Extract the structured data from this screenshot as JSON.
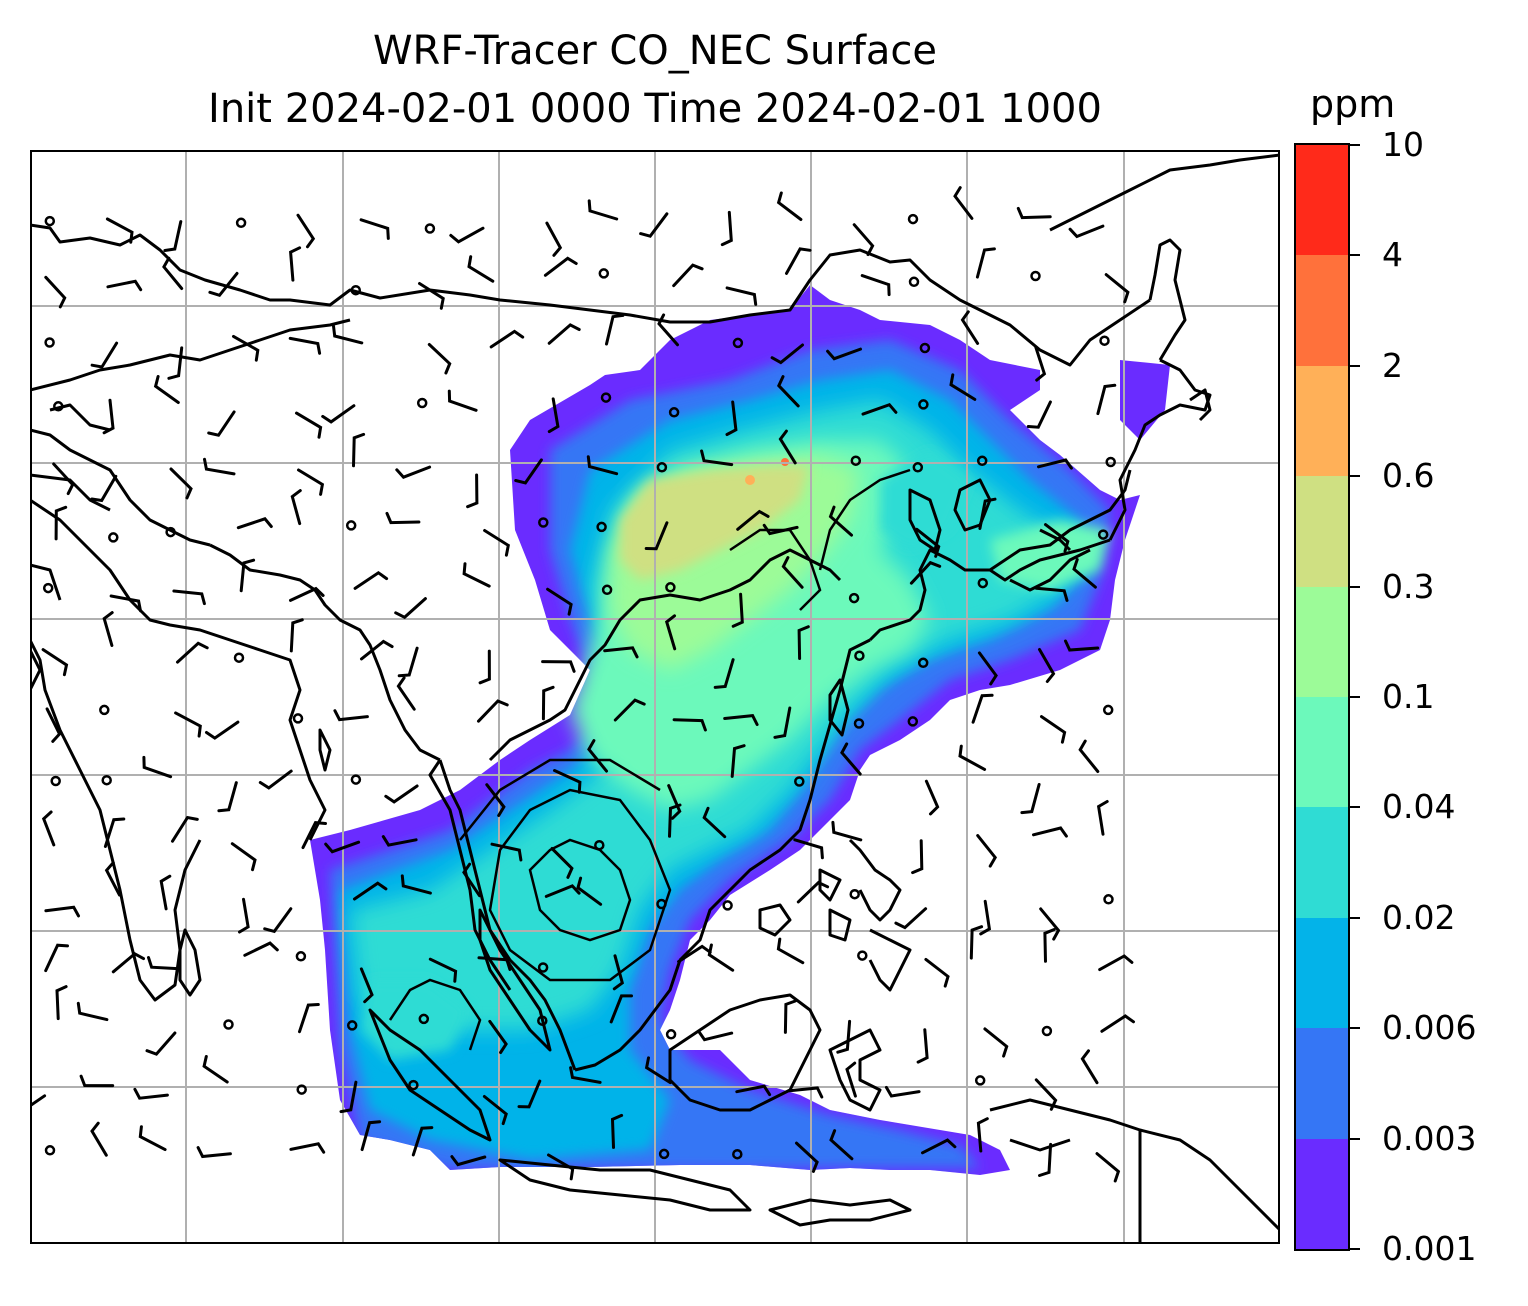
{
  "title_line1": "WRF-Tracer CO_NEC Surface",
  "title_line2": "Init 2024-02-01 0000 Time 2024-02-01 1000",
  "colorbar": {
    "unit": "ppm",
    "levels": [
      "0.001",
      "0.003",
      "0.006",
      "0.02",
      "0.04",
      "0.1",
      "0.3",
      "0.6",
      "2",
      "4",
      "10"
    ],
    "colors": [
      "#6a2cff",
      "#3576f5",
      "#03b3e9",
      "#2fdcd4",
      "#6cf9bb",
      "#9cfb98",
      "#cfe082",
      "#ffb058",
      "#ff713b",
      "#ff2a1a"
    ]
  },
  "map": {
    "field": "CO_NEC surface concentration",
    "overlays": [
      "coastlines",
      "country borders",
      "lat/lon gridlines",
      "wind barbs",
      "contours"
    ],
    "gridline_color": "#b0b0b0"
  }
}
